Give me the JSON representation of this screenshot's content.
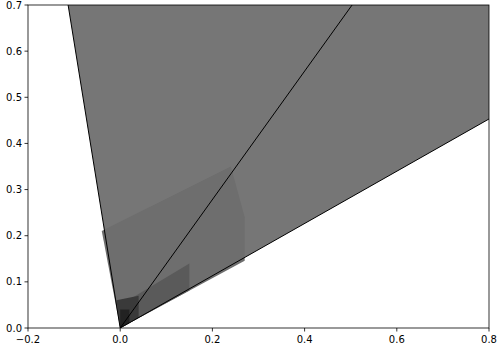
{
  "chart_data": {
    "type": "line",
    "xlim": [
      -0.2,
      0.8
    ],
    "ylim": [
      0,
      0.7
    ],
    "xticks": [
      {
        "value": -0.2,
        "label": "−0.2"
      },
      {
        "value": 0,
        "label": "0.0"
      },
      0.2,
      0.4,
      0.6,
      0.8
    ],
    "yticks": [
      {
        "value": 0,
        "label": "0.0"
      },
      0.1,
      0.2,
      0.3,
      0.4,
      0.5,
      0.6,
      0.7
    ],
    "grid": false,
    "series": [
      {
        "type": "polygon",
        "color": "#767676",
        "x": [
          0,
          -0.113,
          0.8,
          0.8
        ],
        "values": [
          0,
          0.7,
          0.7,
          0.453
        ]
      },
      {
        "type": "polygon",
        "color": "#6e6e6e",
        "x": [
          0,
          -0.04,
          0.24,
          0.27,
          0.27
        ],
        "values": [
          0,
          0.21,
          0.35,
          0.24,
          0.146
        ]
      },
      {
        "type": "polygon",
        "color": "#5a5a5a",
        "x": [
          0,
          0.0,
          0.15,
          0.15
        ],
        "values": [
          0,
          0.05,
          0.14,
          0.081
        ]
      },
      {
        "type": "polygon",
        "color": "#3a3a3a",
        "x": [
          0,
          -0.008,
          0.04,
          0.04
        ],
        "values": [
          0,
          0.06,
          0.07,
          0.022
        ]
      },
      {
        "type": "polygon",
        "color": "#222222",
        "x": [
          0,
          0.0,
          0.02,
          0.02
        ],
        "values": [
          0,
          0.04,
          0.04,
          0.011
        ]
      },
      {
        "type": "line",
        "color": "#000000",
        "x": [
          0,
          -0.113
        ],
        "values": [
          0,
          0.7
        ]
      },
      {
        "type": "line",
        "color": "#000000",
        "x": [
          0,
          0.503
        ],
        "values": [
          0,
          0.7
        ]
      },
      {
        "type": "line",
        "color": "#000000",
        "x": [
          0,
          0.8
        ],
        "values": [
          0,
          0.453
        ]
      }
    ]
  }
}
